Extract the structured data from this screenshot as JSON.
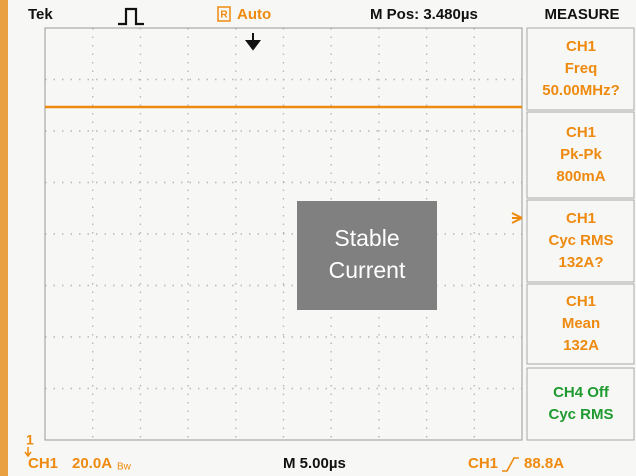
{
  "header": {
    "brand": "Tek",
    "run_icon": "R",
    "mode": "Auto",
    "position": "M Pos: 3.480µs",
    "menu_title": "MEASURE"
  },
  "measurements": [
    {
      "lines": [
        "CH1",
        "Freq",
        "50.00MHz?"
      ]
    },
    {
      "lines": [
        "CH1",
        "Pk-Pk",
        "800mA"
      ]
    },
    {
      "lines": [
        "CH1",
        "Cyc RMS",
        "132A?"
      ]
    },
    {
      "lines": [
        "CH1",
        "Mean",
        "132A"
      ]
    },
    {
      "lines": [
        "CH4 Off",
        "Cyc RMS"
      ]
    }
  ],
  "footer": {
    "channel": "CH1",
    "scale": "20.0A",
    "bandwidth": "Bw",
    "timebase": "M 5.00µs",
    "trigger_channel": "CH1",
    "trigger_level": "88.8A"
  },
  "ground_marker": "1",
  "overlay": {
    "lines": [
      "Stable",
      "Current"
    ]
  }
}
